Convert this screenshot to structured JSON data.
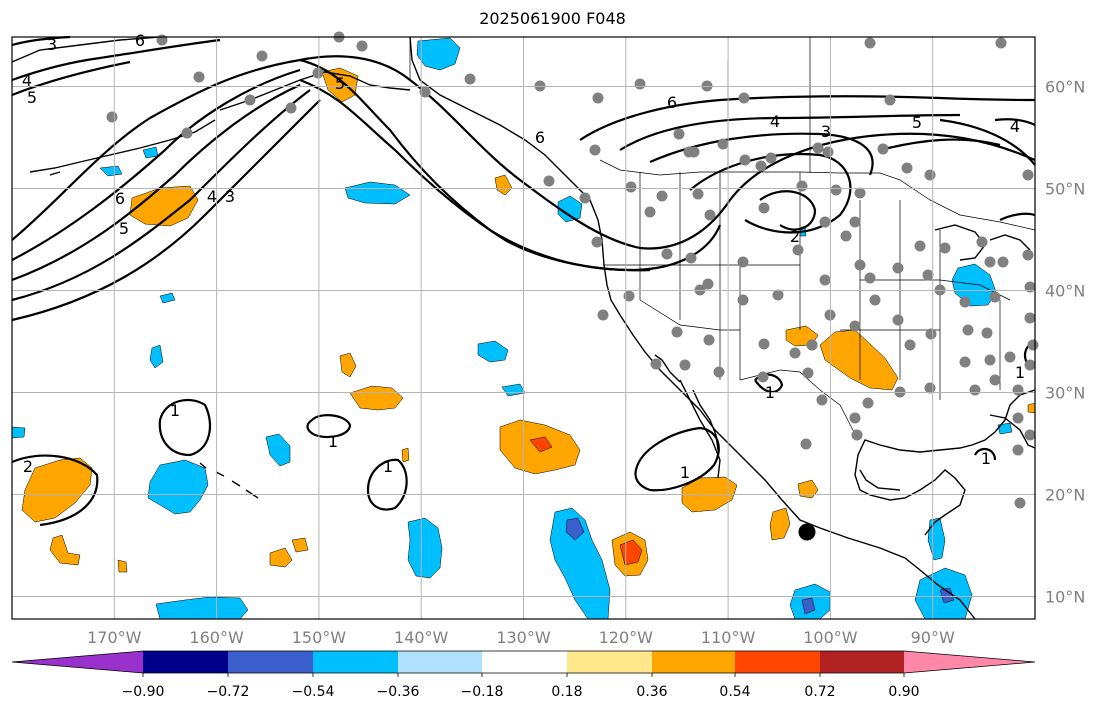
{
  "title": "2025061900 F048",
  "map": {
    "lon_range": [
      -180,
      -80
    ],
    "lat_range": [
      8,
      65
    ],
    "latitude_labels": [
      "60°N",
      "50°N",
      "40°N",
      "30°N",
      "20°N",
      "10°N"
    ],
    "longitude_labels": [
      "170°W",
      "160°W",
      "150°W",
      "140°W",
      "130°W",
      "120°W",
      "110°W",
      "100°W",
      "90°W"
    ],
    "contour_labels": [
      "3",
      "4",
      "5",
      "6",
      "5",
      "4",
      "3",
      "6",
      "5",
      "6",
      "4",
      "3",
      "2",
      "5",
      "4",
      "2",
      "1",
      "1",
      "1",
      "1",
      "1",
      "1",
      "1",
      "6"
    ],
    "marker": "filled-circle",
    "colors": {
      "positive_fill": "#ffa500",
      "strong_positive_fill": "#ff4500",
      "negative_fill": "#00bfff",
      "strong_negative_fill": "#3a5fcd",
      "station_dots": "#808080",
      "contours": "#000000"
    }
  },
  "colorbar": {
    "ticks": [
      "−0.90",
      "−0.72",
      "−0.54",
      "−0.36",
      "−0.18",
      "0.18",
      "0.36",
      "0.54",
      "0.72",
      "0.90"
    ],
    "colors": [
      "#9932cc",
      "#00008b",
      "#3a5fcd",
      "#00bfff",
      "#b0e2ff",
      "#ffffff",
      "#ffe78c",
      "#ffa500",
      "#ff4500",
      "#b22222",
      "#ff88aa"
    ]
  }
}
